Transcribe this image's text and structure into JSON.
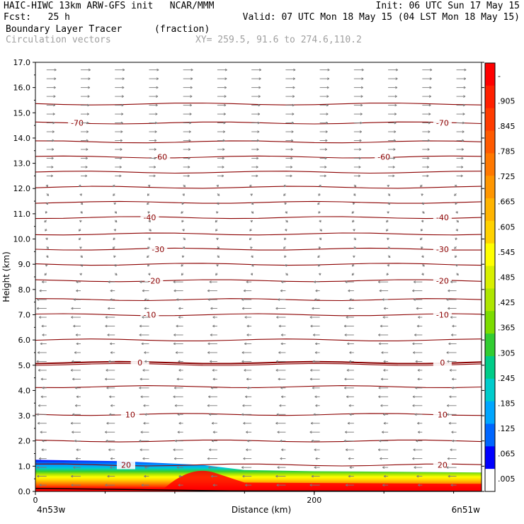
{
  "header": {
    "line1_left": "HAIC-HIWC 13km ARW-GFS init   NCAR/MMM",
    "line1_right": "Init: 06 UTC Sun 17 May 15",
    "line2_left": "Fcst:   25 h",
    "line2_right": "Valid: 07 UTC Mon 18 May 15 (04 LST Mon 18 May 15)",
    "field1_name": "Boundary Layer Tracer",
    "field1_units": "(fraction)",
    "field2_name": "Circulation vectors",
    "xy_info": "XY= 259.5, 91.6 to 274.6,110.2"
  },
  "chart_data": {
    "type": "heatmap",
    "title": "Boundary Layer Tracer (fraction)",
    "xlabel": "Distance (km)",
    "ylabel": "Height (km)",
    "xlim": [
      0,
      320
    ],
    "ylim": [
      0,
      17
    ],
    "x_ticks": [
      {
        "value": 0,
        "label": "0"
      },
      {
        "value": 200,
        "label": "200"
      }
    ],
    "x_end_labels": {
      "left": "4n53w",
      "right": "6n51w"
    },
    "y_ticks": [
      "0.0",
      "1.0",
      "2.0",
      "3.0",
      "4.0",
      "5.0",
      "6.0",
      "7.0",
      "8.0",
      "9.0",
      "10.0",
      "11.0",
      "12.0",
      "13.0",
      "14.0",
      "15.0",
      "16.0",
      "17.0"
    ],
    "colorbar": {
      "labels": [
        "-",
        ".905",
        ".845",
        ".785",
        ".725",
        ".665",
        ".605",
        ".545",
        ".485",
        ".425",
        ".365",
        ".305",
        ".245",
        ".185",
        ".125",
        ".065",
        ".005"
      ],
      "colors": [
        "#ff0000",
        "#ff2000",
        "#ff3c00",
        "#ff5a00",
        "#ff7800",
        "#ff9600",
        "#ffb400",
        "#ffd200",
        "#ffff00",
        "#d8f000",
        "#aee600",
        "#7cdc00",
        "#32cd32",
        "#00cc88",
        "#00cccc",
        "#00a6ff",
        "#0066ff",
        "#0000ff",
        "#ffffff"
      ]
    },
    "boundary_layer_top_km": [
      {
        "x": 0,
        "z": 1.25
      },
      {
        "x": 60,
        "z": 1.2
      },
      {
        "x": 120,
        "z": 1.05
      },
      {
        "x": 150,
        "z": 0.85
      },
      {
        "x": 200,
        "z": 0.8
      },
      {
        "x": 260,
        "z": 0.78
      },
      {
        "x": 320,
        "z": 0.75
      }
    ],
    "temperature_contours_c": [
      {
        "value": -70,
        "label": "-70",
        "z": 14.6
      },
      {
        "value": -60,
        "label": "-60",
        "z": 13.25
      },
      {
        "value": -40,
        "label": "-40",
        "z": 10.85
      },
      {
        "value": -30,
        "label": "-30",
        "z": 9.6
      },
      {
        "value": -20,
        "label": "-20",
        "z": 8.35
      },
      {
        "value": -10,
        "label": "-10",
        "z": 7.0
      },
      {
        "value": 0,
        "label": "0",
        "z": 5.1
      },
      {
        "value": 10,
        "label": "10",
        "z": 3.05
      },
      {
        "value": 20,
        "label": "20",
        "z": 1.05
      }
    ],
    "unlabeled_contour_z": [
      15.35,
      13.85,
      12.65,
      12.05,
      11.45,
      10.2,
      9.0,
      7.6,
      6.0,
      5.03,
      4.15,
      2.0
    ],
    "wind_direction_by_level": [
      {
        "z_from": 0,
        "z_to": 8.5,
        "direction": "westward"
      },
      {
        "z_from": 8.5,
        "z_to": 12.5,
        "direction": "weak"
      },
      {
        "z_from": 12.5,
        "z_to": 17,
        "direction": "eastward"
      }
    ]
  }
}
